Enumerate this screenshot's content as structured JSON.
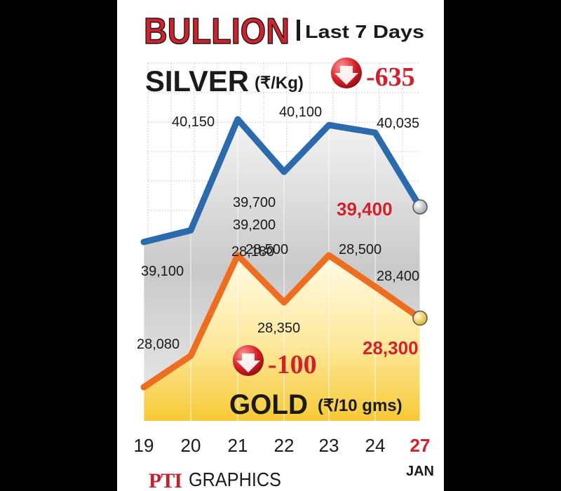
{
  "header": {
    "title": "BULLION",
    "subtitle": "Last 7 Days"
  },
  "credit": {
    "logo_text": "PTI",
    "label": "GRAPHICS"
  },
  "colors": {
    "title_red": "#d2202c",
    "silver_line": "#2a6aad",
    "gold_line": "#ef6d1f",
    "change_red": "#d2202c",
    "text_dark": "#1a1a1a"
  },
  "chart_data": [
    {
      "type": "line",
      "title": "SILVER",
      "unit": "(₹/Kg)",
      "change": "-635",
      "x": [
        "19",
        "20",
        "21",
        "22",
        "23",
        "24",
        "27"
      ],
      "month_label": "JAN",
      "series": [
        {
          "values": [
            39100,
            39200,
            40150,
            39700,
            40100,
            40035,
            39400
          ],
          "labels": [
            "39,100",
            "39,200",
            "40,150",
            "39,700",
            "40,100",
            "40,035",
            "39,400"
          ]
        }
      ]
    },
    {
      "type": "line",
      "title": "GOLD",
      "unit": "(₹/10 gms)",
      "change": "-100",
      "x": [
        "19",
        "20",
        "21",
        "22",
        "23",
        "24",
        "27"
      ],
      "month_label": "JAN",
      "series": [
        {
          "values": [
            28080,
            28180,
            28500,
            28350,
            28500,
            28400,
            28300
          ],
          "labels": [
            "28,080",
            "28,180",
            "28,500",
            "28,350",
            "28,500",
            "28,400",
            "28,300"
          ]
        }
      ]
    }
  ]
}
